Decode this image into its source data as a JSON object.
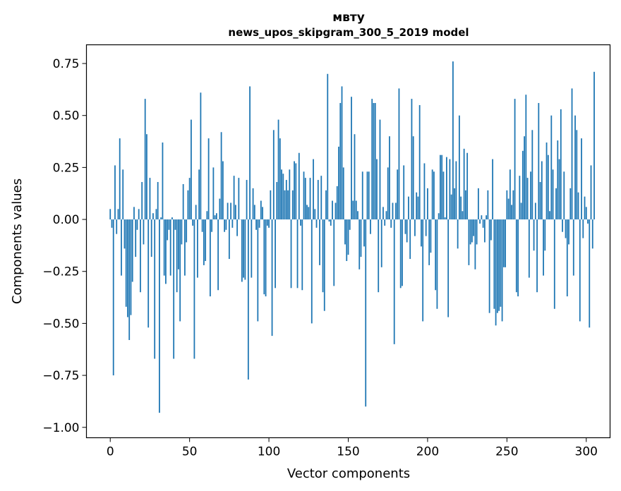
{
  "chart_data": {
    "type": "bar",
    "title": "мвту",
    "subtitle": "news_upos_skipgram_300_5_2019 model",
    "xlabel": "Vector components",
    "ylabel": "Components values",
    "xlim": [
      -15,
      315
    ],
    "ylim": [
      -1.05,
      0.84
    ],
    "xticks": [
      0,
      50,
      100,
      150,
      200,
      250,
      300
    ],
    "xtick_labels": [
      "0",
      "50",
      "100",
      "150",
      "200",
      "250",
      "300"
    ],
    "yticks": [
      0.75,
      0.5,
      0.25,
      0.0,
      -0.25,
      -0.5,
      -0.75,
      -1.0
    ],
    "ytick_labels": [
      "0.75",
      "0.50",
      "0.25",
      "0.00",
      "−0.25",
      "−0.50",
      "−0.75",
      "−1.00"
    ],
    "bar_color": "#1f77b4",
    "grid": false,
    "values": [
      0.05,
      -0.04,
      -0.75,
      0.26,
      -0.07,
      0.05,
      0.39,
      -0.27,
      0.24,
      -0.14,
      -0.42,
      -0.47,
      -0.58,
      -0.46,
      -0.3,
      0.06,
      -0.18,
      -0.05,
      0.05,
      -0.35,
      0.18,
      -0.12,
      0.58,
      0.41,
      -0.52,
      0.2,
      -0.18,
      0.03,
      -0.67,
      0.05,
      0.18,
      -0.93,
      0.01,
      0.37,
      -0.27,
      -0.31,
      -0.1,
      -0.05,
      -0.27,
      0.01,
      -0.67,
      -0.05,
      -0.35,
      -0.24,
      -0.49,
      -0.12,
      0.17,
      -0.27,
      -0.11,
      0.14,
      0.2,
      0.48,
      -0.03,
      -0.67,
      0.07,
      -0.28,
      0.24,
      0.61,
      -0.06,
      -0.22,
      -0.2,
      0.04,
      0.39,
      -0.37,
      -0.06,
      0.25,
      0.02,
      0.03,
      -0.34,
      0.1,
      0.42,
      0.28,
      -0.06,
      -0.05,
      0.08,
      -0.19,
      0.08,
      -0.04,
      0.21,
      0.07,
      -0.08,
      0.2,
      0.0,
      -0.3,
      -0.28,
      -0.29,
      0.19,
      -0.77,
      0.64,
      -0.28,
      0.15,
      0.07,
      -0.05,
      -0.49,
      -0.04,
      0.09,
      0.06,
      -0.36,
      -0.37,
      -0.03,
      -0.04,
      0.14,
      -0.56,
      0.43,
      -0.33,
      0.18,
      0.48,
      0.39,
      0.24,
      0.22,
      0.14,
      0.19,
      0.14,
      0.24,
      -0.33,
      0.14,
      0.28,
      0.27,
      -0.33,
      0.32,
      -0.03,
      -0.34,
      0.23,
      0.2,
      0.07,
      0.06,
      0.2,
      -0.5,
      0.29,
      0.05,
      -0.04,
      0.19,
      -0.22,
      0.21,
      -0.35,
      -0.44,
      0.14,
      0.7,
      -0.01,
      -0.03,
      0.09,
      -0.32,
      0.08,
      0.16,
      0.35,
      0.56,
      0.64,
      0.25,
      -0.12,
      -0.2,
      -0.17,
      -0.05,
      0.59,
      0.09,
      0.41,
      0.09,
      0.04,
      -0.24,
      -0.18,
      0.23,
      -0.13,
      -0.9,
      0.23,
      0.23,
      -0.07,
      0.58,
      0.56,
      0.56,
      0.29,
      -0.35,
      0.48,
      -0.23,
      0.06,
      -0.03,
      0.04,
      0.25,
      0.4,
      -0.04,
      0.08,
      -0.6,
      0.08,
      0.24,
      0.63,
      -0.33,
      -0.32,
      0.26,
      -0.07,
      -0.11,
      0.11,
      -0.19,
      0.58,
      0.4,
      -0.08,
      0.13,
      0.11,
      0.55,
      -0.13,
      -0.49,
      0.27,
      -0.08,
      0.15,
      -0.22,
      -0.16,
      0.24,
      0.23,
      -0.34,
      -0.43,
      0.03,
      0.31,
      0.31,
      0.23,
      0.01,
      0.3,
      -0.47,
      0.29,
      0.12,
      0.76,
      0.15,
      0.28,
      -0.14,
      0.5,
      0.11,
      0.04,
      0.34,
      0.14,
      0.32,
      -0.22,
      -0.12,
      -0.11,
      -0.08,
      -0.24,
      -0.12,
      0.15,
      -0.02,
      0.02,
      -0.04,
      -0.11,
      0.02,
      0.14,
      -0.45,
      -0.1,
      0.29,
      -0.43,
      -0.51,
      -0.45,
      -0.44,
      -0.42,
      -0.49,
      -0.23,
      -0.23,
      0.14,
      0.1,
      0.24,
      0.07,
      0.14,
      0.58,
      -0.35,
      -0.37,
      0.21,
      0.08,
      0.33,
      0.4,
      0.6,
      0.2,
      -0.28,
      0.23,
      0.43,
      -0.15,
      0.08,
      -0.35,
      0.56,
      0.18,
      0.28,
      -0.27,
      -0.15,
      0.37,
      0.31,
      0.04,
      0.5,
      0.24,
      -0.43,
      0.15,
      0.38,
      0.29,
      0.53,
      -0.06,
      0.23,
      -0.09,
      -0.37,
      -0.12,
      0.15,
      0.63,
      -0.27,
      0.5,
      0.43,
      0.13,
      -0.49,
      0.39,
      -0.09,
      0.11,
      0.06,
      -0.02,
      -0.52,
      0.26,
      -0.14,
      0.71
    ]
  }
}
